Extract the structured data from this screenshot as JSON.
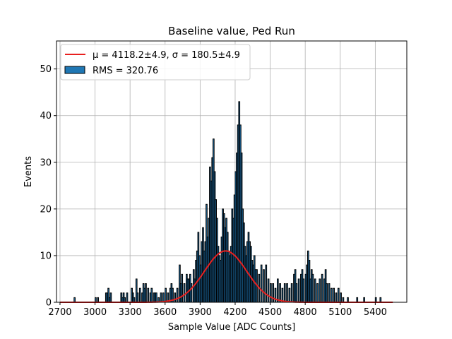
{
  "chart_data": {
    "type": "bar",
    "title": "Baseline value, Ped Run",
    "xlabel": "Sample Value [ADC Counts]",
    "ylabel": "Events",
    "xlim": [
      2670,
      5670
    ],
    "ylim": [
      0,
      56
    ],
    "grid": true,
    "xticks": [
      2700,
      3000,
      3300,
      3600,
      3900,
      4200,
      4500,
      4800,
      5100,
      5400
    ],
    "yticks": [
      0,
      10,
      20,
      30,
      40,
      50
    ],
    "legend": {
      "placement": "top-left",
      "entries": [
        {
          "label": "$\\mu=4118.2\\pm4.9$, $\\sigma=180.5\\pm4.9$",
          "display_label": "μ = 4118.2±4.9, σ = 180.5±4.9",
          "style": "line",
          "color": "#e8201f"
        },
        {
          "label": "RMS = 320.76",
          "display_label": "RMS = 320.76",
          "style": "patch",
          "color": "#1f77b4"
        }
      ]
    },
    "series": [
      {
        "name": "$\\mu=4118.2\\pm4.9$, $\\sigma=180.5\\pm4.9$",
        "kind": "gaussian_fit",
        "mu": 4118.2,
        "sigma": 180.5,
        "amplitude": 11,
        "x_range": [
          2700,
          5550
        ],
        "color": "#e8201f"
      },
      {
        "name": "RMS = 320.76",
        "kind": "histogram",
        "color": "#1f77b4",
        "edgecolor": "#000000",
        "bins": [
          [
            2820,
            1
          ],
          [
            3000,
            1
          ],
          [
            3020,
            1
          ],
          [
            3090,
            2
          ],
          [
            3100,
            2
          ],
          [
            3110,
            3
          ],
          [
            3120,
            1
          ],
          [
            3130,
            2
          ],
          [
            3220,
            2
          ],
          [
            3230,
            1
          ],
          [
            3240,
            2
          ],
          [
            3250,
            1
          ],
          [
            3270,
            2
          ],
          [
            3310,
            3
          ],
          [
            3320,
            2
          ],
          [
            3330,
            1
          ],
          [
            3350,
            5
          ],
          [
            3360,
            2
          ],
          [
            3380,
            3
          ],
          [
            3400,
            2
          ],
          [
            3410,
            4
          ],
          [
            3420,
            3
          ],
          [
            3430,
            4
          ],
          [
            3450,
            3
          ],
          [
            3470,
            2
          ],
          [
            3480,
            3
          ],
          [
            3500,
            2
          ],
          [
            3510,
            2
          ],
          [
            3520,
            2
          ],
          [
            3540,
            1
          ],
          [
            3560,
            2
          ],
          [
            3580,
            2
          ],
          [
            3600,
            3
          ],
          [
            3620,
            2
          ],
          [
            3640,
            3
          ],
          [
            3650,
            4
          ],
          [
            3660,
            3
          ],
          [
            3680,
            2
          ],
          [
            3700,
            3
          ],
          [
            3720,
            8
          ],
          [
            3730,
            4
          ],
          [
            3740,
            6
          ],
          [
            3760,
            4
          ],
          [
            3780,
            6
          ],
          [
            3790,
            5
          ],
          [
            3800,
            5
          ],
          [
            3810,
            6
          ],
          [
            3820,
            4
          ],
          [
            3840,
            7
          ],
          [
            3850,
            5
          ],
          [
            3860,
            9
          ],
          [
            3870,
            11
          ],
          [
            3880,
            15
          ],
          [
            3890,
            10
          ],
          [
            3900,
            8
          ],
          [
            3910,
            13
          ],
          [
            3920,
            16
          ],
          [
            3930,
            11
          ],
          [
            3940,
            13
          ],
          [
            3950,
            21
          ],
          [
            3960,
            14
          ],
          [
            3970,
            18
          ],
          [
            3980,
            29
          ],
          [
            3990,
            26
          ],
          [
            4000,
            31
          ],
          [
            4010,
            35
          ],
          [
            4020,
            28
          ],
          [
            4030,
            22
          ],
          [
            4040,
            18
          ],
          [
            4050,
            12
          ],
          [
            4060,
            10
          ],
          [
            4070,
            9
          ],
          [
            4080,
            14
          ],
          [
            4090,
            20
          ],
          [
            4100,
            19
          ],
          [
            4110,
            16
          ],
          [
            4120,
            18
          ],
          [
            4130,
            15
          ],
          [
            4140,
            11
          ],
          [
            4150,
            10
          ],
          [
            4160,
            12
          ],
          [
            4170,
            20
          ],
          [
            4180,
            18
          ],
          [
            4190,
            23
          ],
          [
            4200,
            28
          ],
          [
            4210,
            32
          ],
          [
            4220,
            38
          ],
          [
            4230,
            43
          ],
          [
            4240,
            38
          ],
          [
            4250,
            32
          ],
          [
            4260,
            20
          ],
          [
            4270,
            17
          ],
          [
            4280,
            12
          ],
          [
            4290,
            10
          ],
          [
            4300,
            13
          ],
          [
            4310,
            15
          ],
          [
            4320,
            13
          ],
          [
            4330,
            12
          ],
          [
            4340,
            9
          ],
          [
            4350,
            8
          ],
          [
            4360,
            10
          ],
          [
            4370,
            7
          ],
          [
            4380,
            7
          ],
          [
            4400,
            6
          ],
          [
            4420,
            8
          ],
          [
            4440,
            7
          ],
          [
            4460,
            8
          ],
          [
            4480,
            5
          ],
          [
            4500,
            4
          ],
          [
            4520,
            4
          ],
          [
            4540,
            3
          ],
          [
            4560,
            5
          ],
          [
            4580,
            4
          ],
          [
            4600,
            3
          ],
          [
            4620,
            4
          ],
          [
            4640,
            4
          ],
          [
            4660,
            3
          ],
          [
            4680,
            4
          ],
          [
            4700,
            6
          ],
          [
            4710,
            7
          ],
          [
            4720,
            4
          ],
          [
            4740,
            5
          ],
          [
            4760,
            6
          ],
          [
            4770,
            7
          ],
          [
            4780,
            5
          ],
          [
            4800,
            6
          ],
          [
            4810,
            8
          ],
          [
            4820,
            11
          ],
          [
            4830,
            9
          ],
          [
            4840,
            5
          ],
          [
            4850,
            7
          ],
          [
            4860,
            6
          ],
          [
            4880,
            5
          ],
          [
            4900,
            4
          ],
          [
            4920,
            5
          ],
          [
            4940,
            6
          ],
          [
            4960,
            5
          ],
          [
            4970,
            7
          ],
          [
            4980,
            4
          ],
          [
            5000,
            4
          ],
          [
            5020,
            3
          ],
          [
            5040,
            3
          ],
          [
            5060,
            2
          ],
          [
            5080,
            3
          ],
          [
            5100,
            2
          ],
          [
            5120,
            1
          ],
          [
            5160,
            1
          ],
          [
            5240,
            1
          ],
          [
            5300,
            1
          ],
          [
            5400,
            1
          ],
          [
            5440,
            1
          ]
        ]
      }
    ]
  }
}
